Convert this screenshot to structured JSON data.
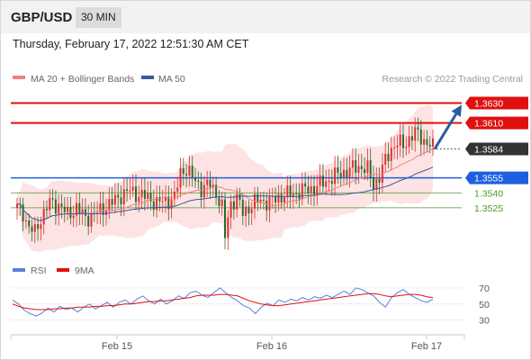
{
  "header": {
    "pair": "GBP/USD",
    "timeframe": "30 MIN"
  },
  "date_line": "Thursday, February 17, 2022 12:51:30 AM CET",
  "legend": {
    "ma20": "MA 20 + Bollinger Bands",
    "ma50": "MA 50",
    "credit": "Research © 2022 Trading Central",
    "rsi": "RSI",
    "rsi_ma": "9MA"
  },
  "colors": {
    "ma20": "#f08080",
    "band": "#fde3e3",
    "ma50": "#3a5a9a",
    "resistance": "#e01010",
    "current": "#333333",
    "pivot": "#1e5fe0",
    "support": "#4a9a2a",
    "up_candle": "#e03030",
    "down_candle": "#2a6a2a",
    "arrow": "#2a5aa0",
    "rsi": "#5b7fdc",
    "rsi_ma": "#e01010"
  },
  "chart_data": [
    {
      "type": "candlestick",
      "ylim": [
        1.3478,
        1.3644
      ],
      "x_ticks": [
        "Feb 15",
        "Feb 16",
        "Feb 17"
      ],
      "levels": [
        {
          "label": "1.3630",
          "value": 1.363,
          "kind": "resistance"
        },
        {
          "label": "1.3610",
          "value": 1.361,
          "kind": "resistance"
        },
        {
          "label": "1.3584",
          "value": 1.3584,
          "kind": "current"
        },
        {
          "label": "1.3555",
          "value": 1.3555,
          "kind": "pivot"
        },
        {
          "label": "1.3540",
          "value": 1.354,
          "kind": "support"
        },
        {
          "label": "1.3525",
          "value": 1.3525,
          "kind": "support"
        }
      ],
      "arrow": {
        "from": 1.3584,
        "to": 1.363
      },
      "anchors": [
        [
          0,
          1.3525
        ],
        [
          2,
          1.352
        ],
        [
          4,
          1.3505
        ],
        [
          6,
          1.35
        ],
        [
          8,
          1.3515
        ],
        [
          11,
          1.353
        ],
        [
          14,
          1.3528
        ],
        [
          17,
          1.3518
        ],
        [
          20,
          1.3525
        ],
        [
          23,
          1.3515
        ],
        [
          26,
          1.3518
        ],
        [
          29,
          1.3525
        ],
        [
          32,
          1.353
        ],
        [
          35,
          1.3538
        ],
        [
          38,
          1.3542
        ],
        [
          41,
          1.3538
        ],
        [
          44,
          1.3535
        ],
        [
          47,
          1.353
        ],
        [
          50,
          1.3532
        ],
        [
          53,
          1.3535
        ],
        [
          55,
          1.356
        ],
        [
          57,
          1.3565
        ],
        [
          59,
          1.3555
        ],
        [
          62,
          1.3545
        ],
        [
          65,
          1.3548
        ],
        [
          67,
          1.354
        ],
        [
          69,
          1.3525
        ],
        [
          70,
          1.3495
        ],
        [
          71,
          1.3515
        ],
        [
          72,
          1.353
        ],
        [
          74,
          1.3535
        ],
        [
          76,
          1.352
        ],
        [
          79,
          1.3528
        ],
        [
          82,
          1.3533
        ],
        [
          85,
          1.353
        ],
        [
          88,
          1.3536
        ],
        [
          91,
          1.3538
        ],
        [
          94,
          1.354
        ],
        [
          97,
          1.3543
        ],
        [
          100,
          1.3545
        ],
        [
          103,
          1.355
        ],
        [
          106,
          1.3555
        ],
        [
          109,
          1.356
        ],
        [
          112,
          1.3563
        ],
        [
          115,
          1.3567
        ],
        [
          118,
          1.3563
        ],
        [
          120,
          1.3548
        ],
        [
          122,
          1.3556
        ],
        [
          124,
          1.3572
        ],
        [
          126,
          1.3585
        ],
        [
          128,
          1.359
        ],
        [
          130,
          1.3587
        ],
        [
          132,
          1.3595
        ],
        [
          134,
          1.36
        ],
        [
          136,
          1.3596
        ],
        [
          138,
          1.359
        ],
        [
          140,
          1.3585
        ]
      ]
    },
    {
      "type": "line",
      "title": "RSI",
      "y_ticks": [
        70,
        50,
        30
      ],
      "ylim": [
        15,
        80
      ],
      "series": [
        {
          "name": "RSI",
          "values": [
            55,
            50,
            42,
            38,
            35,
            39,
            45,
            40,
            47,
            43,
            45,
            40,
            46,
            50,
            44,
            48,
            52,
            46,
            52,
            55,
            50,
            56,
            60,
            54,
            50,
            56,
            50,
            54,
            60,
            57,
            64,
            66,
            61,
            58,
            64,
            70,
            64,
            58,
            54,
            48,
            45,
            38,
            46,
            51,
            48,
            55,
            52,
            56,
            54,
            58,
            55,
            59,
            57,
            61,
            58,
            62,
            66,
            62,
            70,
            68,
            64,
            60,
            52,
            46,
            58,
            64,
            68,
            62,
            58,
            54,
            52,
            56
          ]
        },
        {
          "name": "9MA",
          "values": [
            50,
            47,
            45,
            44,
            43,
            43,
            43,
            44,
            44,
            45,
            45,
            46,
            46,
            46,
            47,
            47,
            48,
            48,
            49,
            50,
            50,
            51,
            52,
            53,
            53,
            54,
            54,
            55,
            56,
            57,
            58,
            60,
            61,
            61,
            61,
            62,
            62,
            61,
            60,
            57,
            54,
            52,
            50,
            49,
            48,
            48,
            49,
            50,
            51,
            52,
            53,
            54,
            55,
            56,
            57,
            58,
            59,
            60,
            61,
            62,
            63,
            63,
            62,
            60,
            59,
            60,
            61,
            62,
            62,
            61,
            59,
            58
          ]
        }
      ]
    }
  ]
}
